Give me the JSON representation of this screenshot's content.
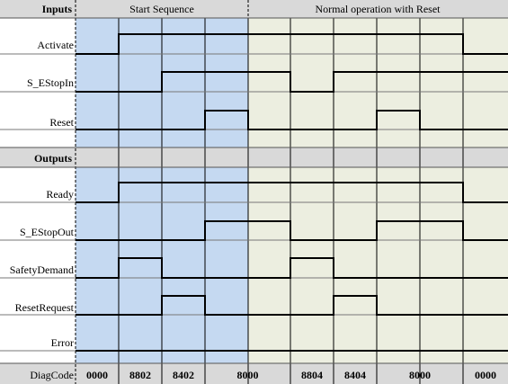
{
  "headers": {
    "inputs": "Inputs",
    "outputs": "Outputs",
    "phase1": "Start Sequence",
    "phase2": "Normal operation with Reset"
  },
  "colors": {
    "phase1_bg": "#c5d9f1",
    "phase2_bg": "#eceee0",
    "header_bg": "#d9d9d9",
    "line": "#000000"
  },
  "signals": [
    {
      "id": "activate",
      "label": "Activate",
      "group": "inputs",
      "levels": [
        0,
        1,
        1,
        1,
        1,
        1,
        1,
        1,
        1,
        0
      ]
    },
    {
      "id": "s-estopin",
      "label": "S_EStopIn",
      "group": "inputs",
      "levels": [
        0,
        0,
        1,
        1,
        1,
        0,
        1,
        1,
        1,
        1
      ]
    },
    {
      "id": "reset",
      "label": "Reset",
      "group": "inputs",
      "levels": [
        0,
        0,
        0,
        1,
        0,
        0,
        0,
        1,
        0,
        0
      ]
    },
    {
      "id": "ready",
      "label": "Ready",
      "group": "outputs",
      "levels": [
        0,
        1,
        1,
        1,
        1,
        1,
        1,
        1,
        1,
        0
      ]
    },
    {
      "id": "s-estopout",
      "label": "S_EStopOut",
      "group": "outputs",
      "levels": [
        0,
        0,
        0,
        1,
        1,
        0,
        0,
        1,
        1,
        0
      ]
    },
    {
      "id": "safetydemand",
      "label": "SafetyDemand",
      "group": "outputs",
      "levels": [
        0,
        1,
        0,
        0,
        0,
        1,
        0,
        0,
        0,
        0
      ]
    },
    {
      "id": "resetrequest",
      "label": "ResetRequest",
      "group": "outputs",
      "levels": [
        0,
        0,
        1,
        0,
        0,
        0,
        1,
        0,
        0,
        0
      ]
    },
    {
      "id": "error",
      "label": "Error",
      "group": "outputs",
      "levels": [
        0,
        0,
        0,
        0,
        0,
        0,
        0,
        0,
        0,
        0
      ]
    }
  ],
  "diagcode": {
    "label": "DiagCode",
    "values": [
      {
        "text": "0000",
        "cols": [
          0,
          0
        ]
      },
      {
        "text": "8802",
        "cols": [
          1,
          1
        ]
      },
      {
        "text": "8402",
        "cols": [
          2,
          2
        ]
      },
      {
        "text": "8000",
        "cols": [
          3,
          4
        ]
      },
      {
        "text": "8804",
        "cols": [
          5,
          5
        ]
      },
      {
        "text": "8404",
        "cols": [
          6,
          6
        ]
      },
      {
        "text": "8000",
        "cols": [
          7,
          8
        ]
      },
      {
        "text": "0000",
        "cols": [
          9,
          9
        ]
      }
    ]
  }
}
